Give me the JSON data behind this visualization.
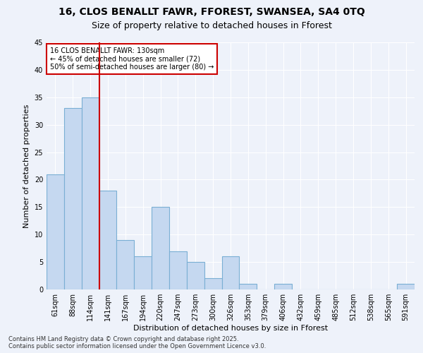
{
  "title1": "16, CLOS BENALLT FAWR, FFOREST, SWANSEA, SA4 0TQ",
  "title2": "Size of property relative to detached houses in Fforest",
  "xlabel": "Distribution of detached houses by size in Fforest",
  "ylabel": "Number of detached properties",
  "categories": [
    "61sqm",
    "88sqm",
    "114sqm",
    "141sqm",
    "167sqm",
    "194sqm",
    "220sqm",
    "247sqm",
    "273sqm",
    "300sqm",
    "326sqm",
    "353sqm",
    "379sqm",
    "406sqm",
    "432sqm",
    "459sqm",
    "485sqm",
    "512sqm",
    "538sqm",
    "565sqm",
    "591sqm"
  ],
  "values": [
    21,
    33,
    35,
    18,
    9,
    6,
    15,
    7,
    5,
    2,
    6,
    1,
    0,
    1,
    0,
    0,
    0,
    0,
    0,
    0,
    1
  ],
  "bar_color": "#c5d8f0",
  "bar_edge_color": "#7aafd4",
  "bar_linewidth": 0.8,
  "vline_x_index": 2,
  "vline_color": "#cc0000",
  "annotation_text": "16 CLOS BENALLT FAWR: 130sqm\n← 45% of detached houses are smaller (72)\n50% of semi-detached houses are larger (80) →",
  "annotation_box_edge_color": "#cc0000",
  "annotation_box_facecolor": "#ffffff",
  "ylim": [
    0,
    45
  ],
  "yticks": [
    0,
    5,
    10,
    15,
    20,
    25,
    30,
    35,
    40,
    45
  ],
  "footer_text": "Contains HM Land Registry data © Crown copyright and database right 2025.\nContains public sector information licensed under the Open Government Licence v3.0.",
  "bg_color": "#eef2fa",
  "grid_color": "#ffffff",
  "title_fontsize": 10,
  "subtitle_fontsize": 9,
  "tick_fontsize": 7,
  "ylabel_fontsize": 8,
  "xlabel_fontsize": 8,
  "annotation_fontsize": 7,
  "footer_fontsize": 6
}
